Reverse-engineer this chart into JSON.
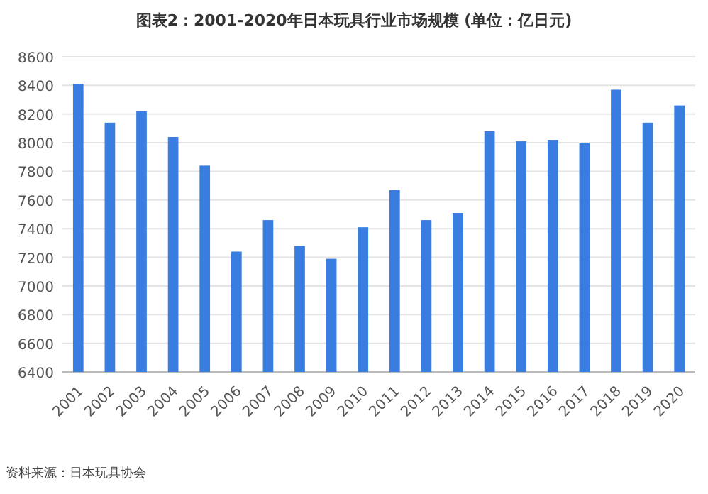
{
  "chart_data": {
    "type": "bar",
    "title": "图表2：2001-2020年日本玩具行业市场规模 (单位：亿日元)",
    "categories": [
      "2001",
      "2002",
      "2003",
      "2004",
      "2005",
      "2006",
      "2007",
      "2008",
      "2009",
      "2010",
      "2011",
      "2012",
      "2013",
      "2014",
      "2015",
      "2016",
      "2017",
      "2018",
      "2019",
      "2020"
    ],
    "values": [
      8410,
      8140,
      8220,
      8040,
      7840,
      7240,
      7460,
      7280,
      7190,
      7410,
      7670,
      7460,
      7510,
      8080,
      8010,
      8020,
      8000,
      8370,
      8140,
      8260
    ],
    "color": "#3a7de0",
    "ylim": [
      6400,
      8600
    ],
    "yticks": [
      6400,
      6600,
      6800,
      7000,
      7200,
      7400,
      7600,
      7800,
      8000,
      8200,
      8400,
      8600
    ],
    "grid": "y",
    "annotations": [
      "资料来源：日本玩具协会"
    ]
  }
}
